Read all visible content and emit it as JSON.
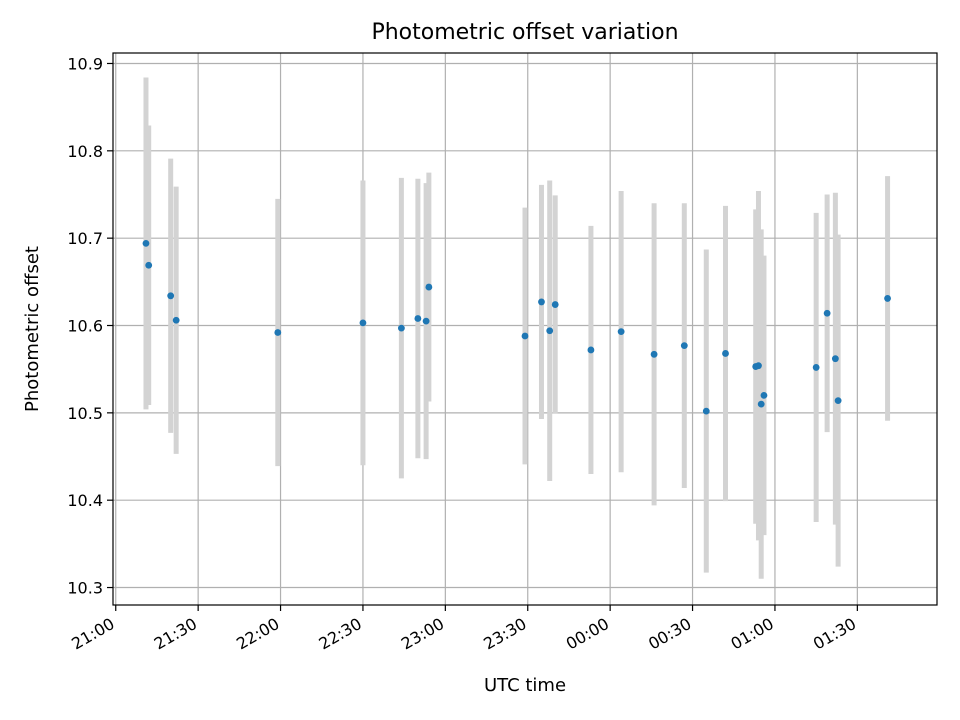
{
  "chart_data": {
    "type": "scatter",
    "title": "Photometric offset variation",
    "xlabel": "UTC time",
    "ylabel": "Photometric offset",
    "grid": true,
    "colors": {
      "point": "#1f77b4",
      "errorbar": "#d3d3d3"
    },
    "x_tick_labels": [
      "21:00",
      "21:30",
      "22:00",
      "22:30",
      "23:00",
      "23:30",
      "00:00",
      "00:30",
      "01:00",
      "01:30"
    ],
    "y_tick_labels": [
      "10.3",
      "10.4",
      "10.5",
      "10.6",
      "10.7",
      "10.8",
      "10.9"
    ],
    "x_axis_base_date": "2000-01-01",
    "ylim": [
      10.28,
      10.912
    ],
    "xlim": [
      "2000-01-01T20:59",
      "2000-01-02T01:59"
    ],
    "series": [
      {
        "points": [
          {
            "x": "2000-01-01T21:11",
            "y": 10.694,
            "err": 0.19
          },
          {
            "x": "2000-01-01T21:12",
            "y": 10.669,
            "err": 0.16
          },
          {
            "x": "2000-01-01T21:20",
            "y": 10.634,
            "err": 0.157
          },
          {
            "x": "2000-01-01T21:22",
            "y": 10.606,
            "err": 0.153
          },
          {
            "x": "2000-01-01T21:59",
            "y": 10.592,
            "err": 0.153
          },
          {
            "x": "2000-01-01T22:30",
            "y": 10.603,
            "err": 0.163
          },
          {
            "x": "2000-01-01T22:44",
            "y": 10.597,
            "err": 0.172
          },
          {
            "x": "2000-01-01T22:50",
            "y": 10.608,
            "err": 0.16
          },
          {
            "x": "2000-01-01T22:53",
            "y": 10.605,
            "err": 0.158
          },
          {
            "x": "2000-01-01T22:54",
            "y": 10.644,
            "err": 0.131
          },
          {
            "x": "2000-01-01T23:29",
            "y": 10.588,
            "err": 0.147
          },
          {
            "x": "2000-01-01T23:35",
            "y": 10.627,
            "err": 0.134
          },
          {
            "x": "2000-01-01T23:38",
            "y": 10.594,
            "err": 0.172
          },
          {
            "x": "2000-01-01T23:40",
            "y": 10.624,
            "err": 0.125
          },
          {
            "x": "2000-01-01T23:53",
            "y": 10.572,
            "err": 0.142
          },
          {
            "x": "2000-01-02T00:04",
            "y": 10.593,
            "err": 0.161
          },
          {
            "x": "2000-01-02T00:16",
            "y": 10.567,
            "err": 0.173
          },
          {
            "x": "2000-01-02T00:27",
            "y": 10.577,
            "err": 0.163
          },
          {
            "x": "2000-01-02T00:35",
            "y": 10.502,
            "err": 0.185
          },
          {
            "x": "2000-01-02T00:42",
            "y": 10.568,
            "err": 0.169
          },
          {
            "x": "2000-01-02T00:53",
            "y": 10.553,
            "err": 0.18
          },
          {
            "x": "2000-01-02T00:54",
            "y": 10.554,
            "err": 0.2
          },
          {
            "x": "2000-01-02T00:55",
            "y": 10.51,
            "err": 0.2
          },
          {
            "x": "2000-01-02T00:56",
            "y": 10.52,
            "err": 0.16
          },
          {
            "x": "2000-01-02T01:15",
            "y": 10.552,
            "err": 0.177
          },
          {
            "x": "2000-01-02T01:19",
            "y": 10.614,
            "err": 0.136
          },
          {
            "x": "2000-01-02T01:22",
            "y": 10.562,
            "err": 0.19
          },
          {
            "x": "2000-01-02T01:23",
            "y": 10.514,
            "err": 0.19
          },
          {
            "x": "2000-01-02T01:41",
            "y": 10.631,
            "err": 0.14
          }
        ]
      }
    ]
  }
}
